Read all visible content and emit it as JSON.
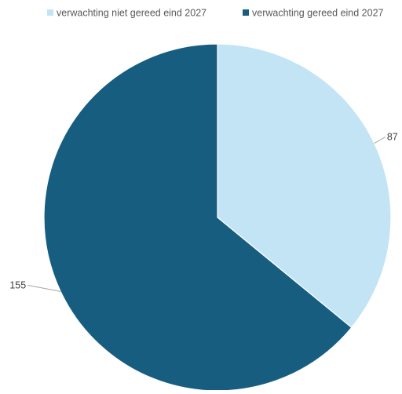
{
  "chart_data": {
    "type": "pie",
    "title": "",
    "categories": [
      "verwachting niet gereed eind 2027",
      "verwachting gereed eind 2027"
    ],
    "values": [
      87,
      155
    ],
    "data_labels": [
      "87",
      "155"
    ],
    "colors": [
      "#c3e4f5",
      "#175d7f"
    ],
    "legend": {
      "position": "top",
      "entries": [
        {
          "label": "verwachting niet gereed eind 2027",
          "color": "#c3e4f5"
        },
        {
          "label": "verwachting gereed eind 2027",
          "color": "#175d7f"
        }
      ]
    },
    "start_angle": "12 o'clock",
    "direction": "clockwise"
  }
}
